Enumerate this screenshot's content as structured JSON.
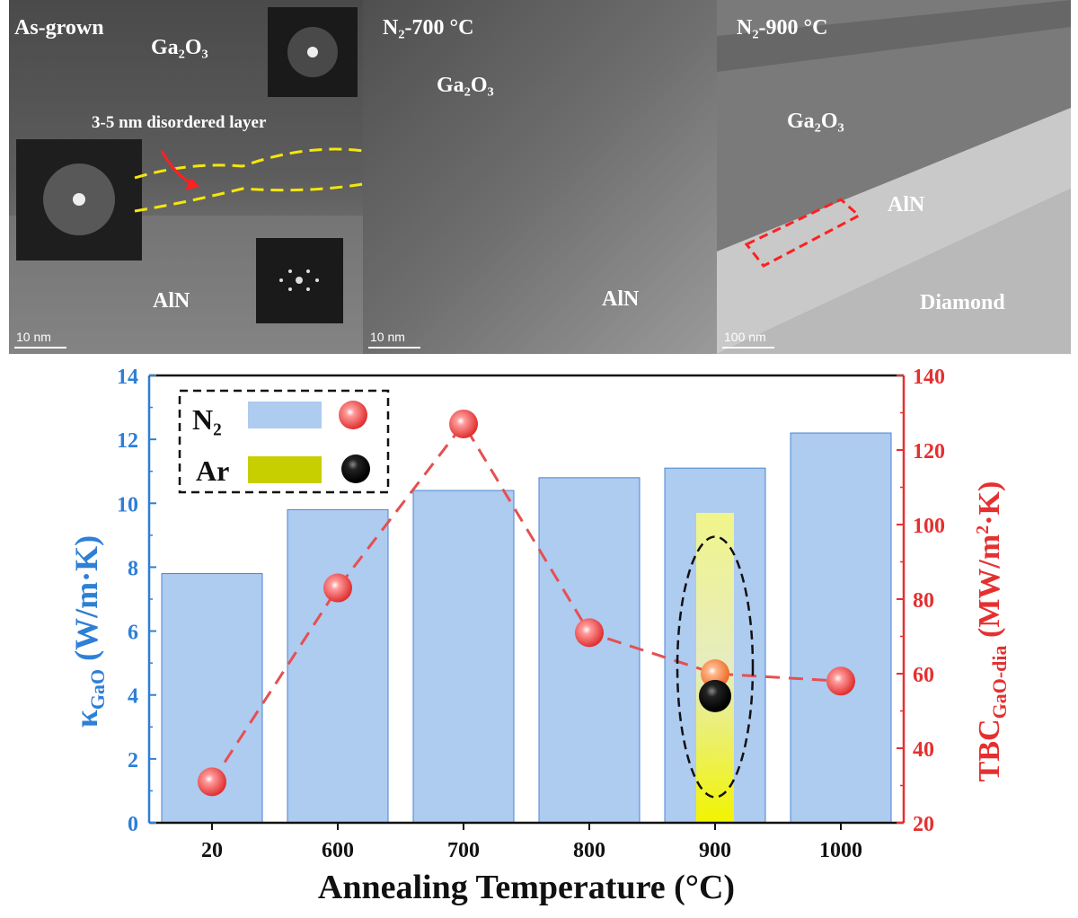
{
  "panels": [
    {
      "title": "As-grown",
      "ga2o3_label": "Ga₂O₃",
      "annotation": "3-5 nm disordered layer",
      "aln_label": "AlN",
      "scale_bar": "10 nm"
    },
    {
      "title": "N₂-700 °C",
      "ga2o3_label": "Ga₂O₃",
      "aln_label": "AlN",
      "scale_bar": "10 nm"
    },
    {
      "title": "N₂-900 °C",
      "ga2o3_label": "Ga₂O₃",
      "aln_label": "AlN",
      "diamond_label": "Diamond",
      "scale_bar": "100 nm"
    }
  ],
  "colors": {
    "n2_bar": "#aecbf0",
    "n2_bar_edge": "#4a86d0",
    "left_axis": "#2e7fd6",
    "right_axis": "#e53030",
    "line": "#e55050",
    "ar_bar": "#c8cf00",
    "n2_marker": "#e03a3a",
    "ar_marker": "#000000"
  },
  "legend": {
    "n2_label": "N₂",
    "ar_label": "Ar"
  },
  "chart_data": {
    "type": "bar",
    "categories": [
      "20",
      "600",
      "700",
      "800",
      "900",
      "1000"
    ],
    "xlabel": "Annealing Temperature (°C)",
    "ylabel_left": "κGaO (W/m·K)",
    "ylabel_right": "TBCGaO-dia (MW/m²·K)",
    "ylim_left": [
      0,
      14
    ],
    "yticks_left": [
      0,
      2,
      4,
      6,
      8,
      10,
      12,
      14
    ],
    "ylim_right": [
      20,
      140
    ],
    "yticks_right": [
      20,
      40,
      60,
      80,
      100,
      120,
      140
    ],
    "series": [
      {
        "name": "N₂",
        "kind": "bar",
        "axis": "left",
        "values": [
          7.8,
          9.8,
          10.4,
          10.8,
          11.1,
          12.2
        ]
      },
      {
        "name": "N₂",
        "kind": "line-markers",
        "axis": "right",
        "values": [
          31,
          83,
          127,
          71,
          60,
          58
        ]
      },
      {
        "name": "Ar",
        "kind": "bar",
        "axis": "left",
        "category": "900",
        "value": 9.7
      },
      {
        "name": "Ar",
        "kind": "marker",
        "axis": "right",
        "category": "900",
        "value": 54
      }
    ],
    "legend_position": "top-left"
  }
}
